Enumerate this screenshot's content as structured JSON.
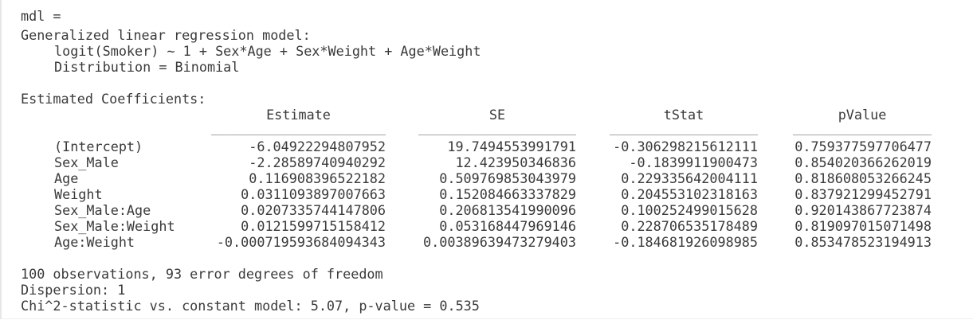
{
  "output": {
    "var_line": "mdl =",
    "model_type": "Generalized linear regression model:",
    "formula": "logit(Smoker) ~ 1 + Sex*Age + Sex*Weight + Age*Weight",
    "distribution": "Distribution = Binomial",
    "coef_title": "Estimated Coefficients:",
    "columns": [
      "Estimate",
      "SE",
      "tStat",
      "pValue"
    ],
    "rows": [
      {
        "name": "(Intercept)",
        "values": [
          "-6.04922294807952",
          "19.7494553991791",
          "-0.306298215612111",
          "0.759377597706477"
        ]
      },
      {
        "name": "Sex_Male",
        "values": [
          "-2.28589740940292",
          "12.423950346836",
          "-0.1839911900473",
          "0.854020366262019"
        ]
      },
      {
        "name": "Age",
        "values": [
          "0.116908396522182",
          "0.509769853043979",
          "0.229335642004111",
          "0.818608053266245"
        ]
      },
      {
        "name": "Weight",
        "values": [
          "0.0311093897007663",
          "0.152084663337829",
          "0.204553102318163",
          "0.837921299452791"
        ]
      },
      {
        "name": "Sex_Male:Age",
        "values": [
          "0.0207335744147806",
          "0.206813541990096",
          "0.100252499015628",
          "0.920143867723874"
        ]
      },
      {
        "name": "Sex_Male:Weight",
        "values": [
          "0.0121599715158412",
          "0.053168447969146",
          "0.228706535178489",
          "0.819097015071498"
        ]
      },
      {
        "name": "Age:Weight",
        "values": [
          "-0.000719593684094343",
          "0.00389639473279403",
          "-0.184681926098985",
          "0.853478523194913"
        ]
      }
    ],
    "observations": "100 observations, 93 error degrees of freedom",
    "dispersion": "Dispersion: 1",
    "chi2": "Chi^2-statistic vs. constant model: 5.07, p-value = 0.535"
  }
}
